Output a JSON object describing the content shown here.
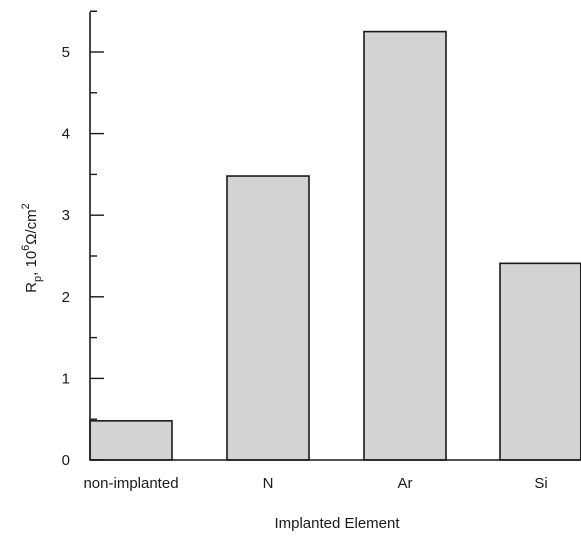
{
  "chart_data": {
    "type": "bar",
    "categories": [
      "non-implanted",
      "N",
      "Ar",
      "Si"
    ],
    "values": [
      0.48,
      3.48,
      5.25,
      2.41
    ],
    "xlabel": "Implanted Element",
    "ylabel": {
      "prefix": "R",
      "prefix_sub": "p",
      "mid": ", 10",
      "mid_sup": "6",
      "suffix": "Ω/cm",
      "suffix_sup": "2"
    },
    "ylim": [
      0,
      5.5
    ],
    "yticks_major": [
      0,
      1,
      2,
      3,
      4,
      5
    ],
    "yticks_minor_step": 0.5,
    "grid": false,
    "legend": "none",
    "colors": {
      "bar_fill": "#d3d3d3",
      "bar_stroke": "#1a1a1a"
    }
  }
}
